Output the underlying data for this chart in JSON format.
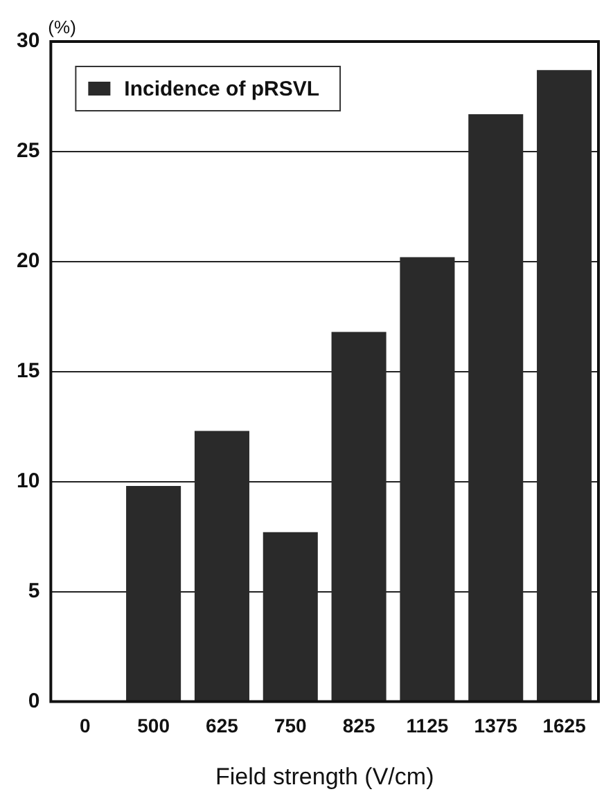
{
  "chart_data": {
    "type": "bar",
    "xlabel": "Field strength (V/cm)",
    "ylabel": "(%)",
    "categories": [
      "0",
      "500",
      "625",
      "750",
      "825",
      "1125",
      "1375",
      "1625"
    ],
    "series": [
      {
        "name": "Incidence of pRSVL",
        "color": "#2a2a2a",
        "values": [
          0,
          9.8,
          12.3,
          7.7,
          16.8,
          20.2,
          26.7,
          28.7
        ]
      }
    ],
    "ylim": [
      0,
      30
    ],
    "yticks": [
      0,
      5,
      10,
      15,
      20,
      25,
      30
    ],
    "grid": "y",
    "legend": "top left"
  }
}
